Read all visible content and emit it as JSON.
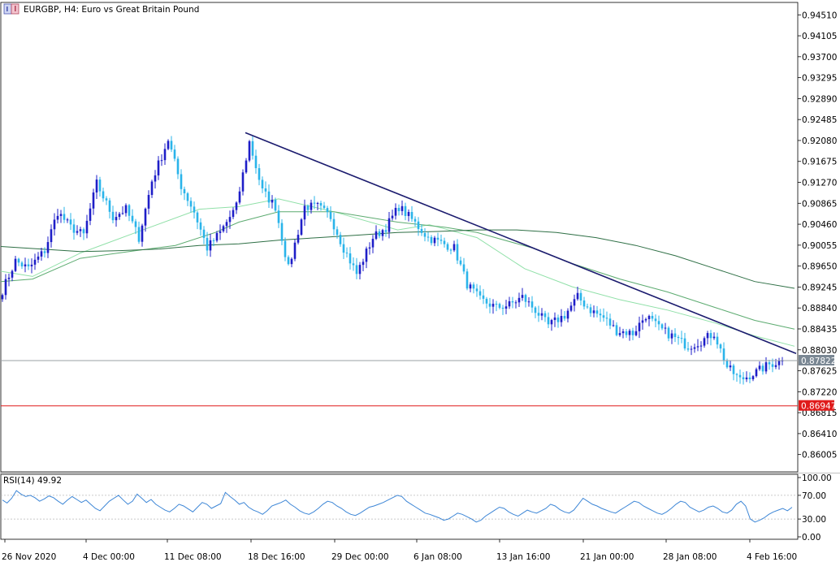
{
  "header": {
    "symbol": "EURGBP",
    "timeframe": "H4",
    "description": "Euro vs Great Britain Pound",
    "title_text": "EURGBP, H4:  Euro vs Great Britain Pound"
  },
  "colors": {
    "bull": "#1e1ec8",
    "bear": "#2ab4ea",
    "ma_fast": "#90e0a8",
    "ma_mid": "#5cab70",
    "ma_slow": "#2e6f45",
    "trendline": "#1b1b6e",
    "current_price_line": "#9aa0a6",
    "current_price_tag": "#7a8793",
    "alert_line": "#e01b1b",
    "rsi": "#3d86d6"
  },
  "chart_data": [
    {
      "type": "candlestick",
      "title": "EURGBP, H4:  Euro vs Great Britain Pound",
      "y_ticks": [
        "0.94510",
        "0.94105",
        "0.93700",
        "0.93295",
        "0.92890",
        "0.92485",
        "0.92080",
        "0.91675",
        "0.91270",
        "0.90865",
        "0.90460",
        "0.90055",
        "0.89650",
        "0.89245",
        "0.88840",
        "0.88435",
        "0.88030",
        "0.87625",
        "0.87220",
        "0.86815",
        "0.86410",
        "0.86005"
      ],
      "ylim": [
        0.8567,
        0.9475
      ],
      "x_ticks": [
        "26 Nov 2020",
        "4 Dec 00:00",
        "11 Dec 08:00",
        "18 Dec 16:00",
        "29 Dec 00:00",
        "6 Jan 08:00",
        "13 Jan 16:00",
        "21 Jan 00:00",
        "28 Jan 08:00",
        "4 Feb 16:00"
      ],
      "price_anchors": [
        [
          "26 Nov 2020",
          0.8918
        ],
        [
          "27 Nov",
          0.8975
        ],
        [
          "30 Nov",
          0.896
        ],
        [
          "1 Dec",
          0.8995
        ],
        [
          "2 Dec",
          0.907
        ],
        [
          "3 Dec",
          0.904
        ],
        [
          "4 Dec 00:00",
          0.9025
        ],
        [
          "7 Dec",
          0.9125
        ],
        [
          "8 Dec",
          0.906
        ],
        [
          "9 Dec",
          0.9075
        ],
        [
          "10 Dec",
          0.902
        ],
        [
          "11 Dec 00:00",
          0.913
        ],
        [
          "11 Dec 08:00",
          0.921
        ],
        [
          "14 Dec",
          0.912
        ],
        [
          "15 Dec",
          0.907
        ],
        [
          "16 Dec",
          0.9
        ],
        [
          "17 Dec",
          0.903
        ],
        [
          "18 Dec 00:00",
          0.908
        ],
        [
          "18 Dec 16:00",
          0.9205
        ],
        [
          "21 Dec",
          0.911
        ],
        [
          "22 Dec",
          0.908
        ],
        [
          "23 Dec",
          0.896
        ],
        [
          "24 Dec",
          0.908
        ],
        [
          "28 Dec",
          0.908
        ],
        [
          "29 Dec 00:00",
          0.906
        ],
        [
          "30 Dec",
          0.9
        ],
        [
          "31 Dec",
          0.895
        ],
        [
          "4 Jan",
          0.902
        ],
        [
          "5 Jan",
          0.904
        ],
        [
          "6 Jan 00:00",
          0.908
        ],
        [
          "6 Jan 08:00",
          0.9055
        ],
        [
          "7 Jan",
          0.902
        ],
        [
          "8 Jan",
          0.901
        ],
        [
          "11 Jan",
          0.9
        ],
        [
          "12 Jan",
          0.893
        ],
        [
          "13 Jan 00:00",
          0.89
        ],
        [
          "13 Jan 16:00",
          0.8885
        ],
        [
          "14 Jan",
          0.889
        ],
        [
          "15 Jan",
          0.8905
        ],
        [
          "18 Jan",
          0.888
        ],
        [
          "19 Jan",
          0.885
        ],
        [
          "20 Jan",
          0.887
        ],
        [
          "21 Jan 00:00",
          0.8905
        ],
        [
          "21 Jan 16:00",
          0.888
        ],
        [
          "22 Jan",
          0.8865
        ],
        [
          "25 Jan",
          0.884
        ],
        [
          "26 Jan",
          0.8835
        ],
        [
          "27 Jan",
          0.887
        ],
        [
          "28 Jan 08:00",
          0.8845
        ],
        [
          "29 Jan",
          0.883
        ],
        [
          "1 Feb",
          0.881
        ],
        [
          "2 Feb",
          0.882
        ],
        [
          "3 Feb",
          0.8835
        ],
        [
          "4 Feb 00:00",
          0.877
        ],
        [
          "4 Feb 08:00",
          0.8745
        ],
        [
          "4 Feb 16:00",
          0.876
        ],
        [
          "5 Feb",
          0.8775
        ],
        [
          "8 Feb",
          0.8782
        ]
      ],
      "moving_averages": [
        {
          "color": "#90e0a8",
          "path": [
            [
              0,
              0.8955
            ],
            [
              0.04,
              0.8945
            ],
            [
              0.1,
              0.899
            ],
            [
              0.17,
              0.903
            ],
            [
              0.25,
              0.9075
            ],
            [
              0.3,
              0.908
            ],
            [
              0.35,
              0.9095
            ],
            [
              0.42,
              0.907
            ],
            [
              0.5,
              0.9035
            ],
            [
              0.54,
              0.9045
            ],
            [
              0.6,
              0.902
            ],
            [
              0.66,
              0.896
            ],
            [
              0.72,
              0.8925
            ],
            [
              0.78,
              0.89
            ],
            [
              0.84,
              0.888
            ],
            [
              0.9,
              0.8855
            ],
            [
              0.95,
              0.883
            ],
            [
              1,
              0.881
            ]
          ]
        },
        {
          "color": "#5cab70",
          "path": [
            [
              0,
              0.8935
            ],
            [
              0.04,
              0.894
            ],
            [
              0.1,
              0.898
            ],
            [
              0.17,
              0.8995
            ],
            [
              0.22,
              0.9005
            ],
            [
              0.27,
              0.903
            ],
            [
              0.3,
              0.905
            ],
            [
              0.35,
              0.907
            ],
            [
              0.42,
              0.907
            ],
            [
              0.5,
              0.905
            ],
            [
              0.56,
              0.904
            ],
            [
              0.6,
              0.903
            ],
            [
              0.67,
              0.9
            ],
            [
              0.72,
              0.897
            ],
            [
              0.78,
              0.894
            ],
            [
              0.84,
              0.8915
            ],
            [
              0.9,
              0.8885
            ],
            [
              0.95,
              0.886
            ],
            [
              1,
              0.8843
            ]
          ]
        },
        {
          "color": "#2e6f45",
          "path": [
            [
              0,
              0.9003
            ],
            [
              0.05,
              0.8998
            ],
            [
              0.1,
              0.8993
            ],
            [
              0.15,
              0.8995
            ],
            [
              0.2,
              0.8998
            ],
            [
              0.25,
              0.9005
            ],
            [
              0.3,
              0.9008
            ],
            [
              0.35,
              0.9015
            ],
            [
              0.4,
              0.902
            ],
            [
              0.45,
              0.9025
            ],
            [
              0.5,
              0.903
            ],
            [
              0.55,
              0.9032
            ],
            [
              0.6,
              0.9035
            ],
            [
              0.65,
              0.9035
            ],
            [
              0.7,
              0.903
            ],
            [
              0.75,
              0.902
            ],
            [
              0.8,
              0.9005
            ],
            [
              0.85,
              0.8985
            ],
            [
              0.9,
              0.896
            ],
            [
              0.95,
              0.8935
            ],
            [
              1,
              0.8922
            ]
          ]
        }
      ],
      "trendline": {
        "from": [
          "18 Dec 16:00",
          0.9223
        ],
        "to": [
          "8 Feb",
          0.8796
        ]
      },
      "horizontal_lines": [
        {
          "label": "0.87822",
          "value": 0.87822,
          "style": "current-price"
        },
        {
          "label": "0.86947",
          "value": 0.86947,
          "style": "alert"
        }
      ]
    },
    {
      "type": "line",
      "title": "RSI(14) 49.92",
      "name": "RSI(14)",
      "last_value": "49.92",
      "y_ticks": [
        "100.00",
        "70.00",
        "30.00",
        "0.00"
      ],
      "ylim": [
        0,
        100
      ],
      "levels": [
        70,
        30
      ],
      "y": [
        62,
        57,
        65,
        78,
        72,
        68,
        70,
        66,
        60,
        64,
        69,
        66,
        60,
        55,
        62,
        68,
        63,
        58,
        62,
        55,
        48,
        44,
        52,
        60,
        65,
        70,
        62,
        55,
        60,
        72,
        65,
        58,
        63,
        55,
        50,
        45,
        42,
        48,
        55,
        52,
        47,
        42,
        50,
        58,
        55,
        48,
        52,
        56,
        75,
        68,
        62,
        55,
        58,
        50,
        45,
        42,
        38,
        44,
        52,
        55,
        58,
        62,
        55,
        50,
        44,
        40,
        38,
        42,
        48,
        55,
        60,
        58,
        52,
        48,
        42,
        38,
        36,
        40,
        45,
        50,
        52,
        55,
        58,
        62,
        66,
        70,
        68,
        60,
        55,
        50,
        45,
        40,
        38,
        35,
        32,
        28,
        30,
        35,
        40,
        38,
        34,
        30,
        25,
        28,
        35,
        40,
        45,
        50,
        48,
        42,
        38,
        35,
        40,
        45,
        42,
        40,
        44,
        48,
        55,
        52,
        46,
        42,
        40,
        45,
        55,
        65,
        60,
        55,
        52,
        48,
        45,
        42,
        40,
        45,
        50,
        55,
        60,
        58,
        52,
        48,
        44,
        40,
        38,
        42,
        48,
        55,
        60,
        58,
        50,
        46,
        42,
        45,
        50,
        52,
        48,
        42,
        40,
        45,
        55,
        60,
        52,
        30,
        25,
        28,
        32,
        38,
        42,
        45,
        48,
        44,
        49.92
      ]
    }
  ]
}
